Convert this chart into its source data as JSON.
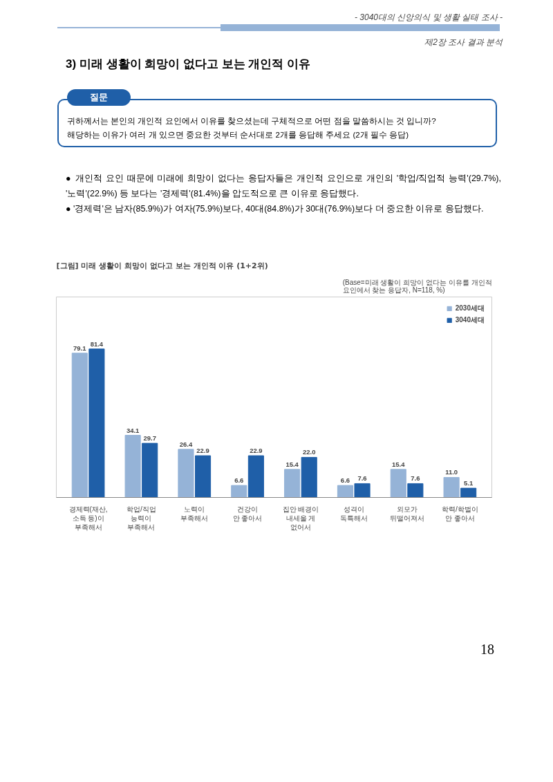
{
  "chart_data": {
    "type": "bar",
    "title": "[그림] 미래 생활이 희망이 없다고 보는 개인적 이유 (1+2위)",
    "categories": [
      "경제력(재산,\n소득 등)이\n부족해서",
      "학업/직업\n능력이\n부족해서",
      "노력이\n부족해서",
      "건강이\n안 좋아서",
      "집안 배경이\n내세울 게\n없어서",
      "성격이\n독특해서",
      "외모가\n뒤떨어져서",
      "학력/학벌이\n안 좋아서"
    ],
    "series": [
      {
        "name": "2030세대",
        "color": "#95b3d7",
        "values": [
          79.1,
          34.1,
          26.4,
          6.6,
          15.4,
          6.6,
          15.4,
          11.0
        ],
        "value_labels": [
          "79.1",
          "34.1",
          "26.4",
          "6.6",
          "15.4",
          "6.6",
          "15.4",
          "11.0"
        ]
      },
      {
        "name": "3040세대",
        "color": "#1f5fa8",
        "values": [
          81.4,
          29.7,
          22.9,
          22.9,
          22.0,
          7.6,
          7.6,
          5.1
        ],
        "value_labels": [
          "81.4",
          "29.7",
          "22.9",
          "22.9",
          "22.0",
          "7.6",
          "7.6",
          "5.1"
        ]
      }
    ],
    "legend": "top right",
    "grid": false,
    "annotations": [
      "- 3040대의 신앙의식 및 생활 실태 조사 -",
      "제2장 조사 결과 분석",
      "3) 미래 생활이 희망이 없다고 보는 개인적 이유",
      "질문",
      "귀하께서는 본인의 개인적 요인에서 이유를 찾으셨는데 구체적으로 어떤 점을 말씀하시는 것 입니까?",
      "해당하는 이유가 여러 개 있으면 중요한 것부터 순서대로 2개를 응답해 주세요 (2개 필수 응답)",
      "● 개인적 요인 때문에 미래에 희망이 없다는 응답자들은 개인적 요인으로 개인의 '학업/직업적 능력'(29.7%), '노력'(22.9%) 등 보다는 '경제력'(81.4%)을 압도적으로 큰 이유로 응답했다.",
      "● '경제력'은 남자(85.9%)가 여자(75.9%)보다, 40대(84.8%)가 30대(76.9%)보다 더 중요한 이유로 응답했다.",
      "(Base=미래 생활이 희망이 없다는 이유를 개인적\n요인에서 찾는 응답자, N=118, %)",
      "18"
    ]
  }
}
